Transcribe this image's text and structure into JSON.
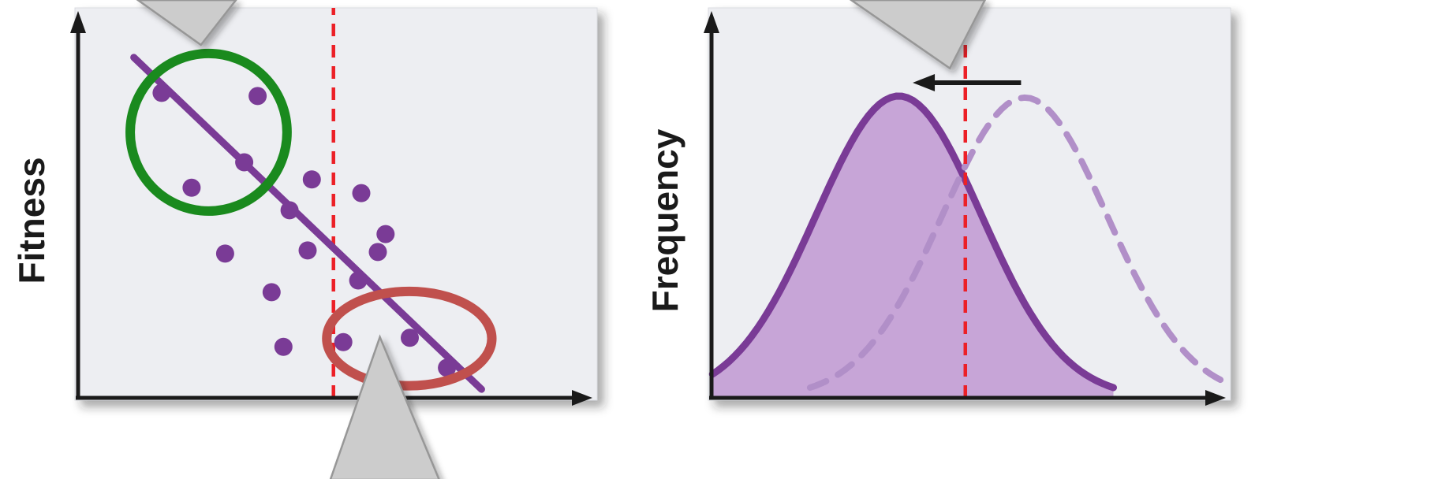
{
  "figure": {
    "description": "Directional selection: fitness scatter with selection threshold and resulting frequency-distribution shift",
    "colors": {
      "axis": "#1a1a1a",
      "panel_background": "#edeef2",
      "panel_border": "#dadce1",
      "purple": "#7a3b96",
      "purple_fill": "#c5a0d5",
      "purple_dashed": "#b18fc8",
      "threshold_red": "#ec2027",
      "green_circle": "#1a8a1e",
      "red_ellipse": "#c0504d",
      "callout_fill": "#cccccc",
      "callout_border": "#979797",
      "shift_arrow": "#1a1a1a"
    }
  },
  "chart_data": [
    {
      "id": "fitness-vs-trait",
      "type": "scatter",
      "title": "",
      "xlabel": "",
      "ylabel": "Fitness",
      "x_range": [
        0,
        1
      ],
      "y_range": [
        0,
        1
      ],
      "grid": false,
      "legend": "none",
      "points": [
        [
          0.162,
          0.782
        ],
        [
          0.348,
          0.774
        ],
        [
          0.22,
          0.539
        ],
        [
          0.322,
          0.604
        ],
        [
          0.41,
          0.481
        ],
        [
          0.453,
          0.56
        ],
        [
          0.549,
          0.525
        ],
        [
          0.596,
          0.42
        ],
        [
          0.581,
          0.374
        ],
        [
          0.285,
          0.37
        ],
        [
          0.445,
          0.378
        ],
        [
          0.375,
          0.271
        ],
        [
          0.543,
          0.301
        ],
        [
          0.398,
          0.131
        ],
        [
          0.514,
          0.143
        ],
        [
          0.643,
          0.154
        ],
        [
          0.715,
          0.077
        ]
      ],
      "trend_line": {
        "x1": 0.108,
        "y1": 0.873,
        "x2": 0.782,
        "y2": 0.022
      },
      "threshold_line": {
        "x": 0.495,
        "style": "dashed",
        "color_key": "threshold_red"
      },
      "annotations": [
        {
          "kind": "ellipse",
          "label": "favored-high-fitness-group",
          "cx": 0.253,
          "cy": 0.681,
          "rx": 0.152,
          "ry": 0.202,
          "color_key": "green_circle"
        },
        {
          "kind": "ellipse",
          "label": "selected-against-low-fitness-group",
          "cx": 0.642,
          "cy": 0.152,
          "rx": 0.16,
          "ry": 0.121,
          "color_key": "red_ellipse"
        }
      ],
      "callouts": [
        {
          "label": "top-pointer",
          "points": [
            [
              0.116,
              1.02
            ],
            [
              0.306,
              1.02
            ],
            [
              0.238,
              0.905
            ]
          ]
        },
        {
          "label": "bottom-pointer",
          "points": [
            [
              0.585,
              0.156
            ],
            [
              0.489,
              -0.21
            ],
            [
              0.7,
              -0.21
            ]
          ]
        }
      ]
    },
    {
      "id": "trait-frequency-shift",
      "type": "area",
      "title": "",
      "xlabel": "",
      "ylabel": "Frequency",
      "x_range": [
        0,
        1
      ],
      "y_range": [
        0,
        1
      ],
      "grid": false,
      "legend": "none",
      "curves": [
        {
          "name": "shifted-distribution",
          "style": "solid",
          "mean": 0.363,
          "sd": 0.16,
          "peak": 0.774,
          "filled": true
        },
        {
          "name": "original-distribution",
          "style": "dashed",
          "mean": 0.607,
          "sd": 0.16,
          "peak": 0.77,
          "filled": false
        }
      ],
      "threshold_line": {
        "x": 0.492,
        "style": "dashed",
        "color_key": "threshold_red"
      },
      "shift_arrow": {
        "x_tail": 0.6,
        "x_head": 0.39,
        "y": 0.808
      },
      "callouts": [
        {
          "label": "top-pointer",
          "points": [
            [
              0.271,
              1.02
            ],
            [
              0.53,
              1.02
            ],
            [
              0.462,
              0.845
            ]
          ]
        }
      ]
    }
  ]
}
